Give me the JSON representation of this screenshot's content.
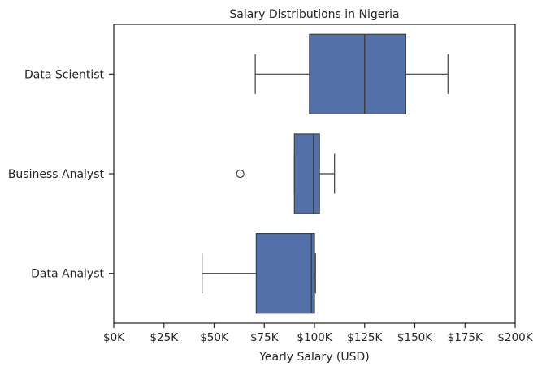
{
  "chart_data": {
    "type": "boxplot",
    "orientation": "horizontal",
    "title": "Salary Distributions in Nigeria",
    "xlabel": "Yearly Salary (USD)",
    "ylabel": "",
    "xlim": [
      0,
      200000
    ],
    "x_ticks": [
      0,
      25000,
      50000,
      75000,
      100000,
      125000,
      150000,
      175000,
      200000
    ],
    "x_tick_labels": [
      "$0K",
      "$25K",
      "$50K",
      "$75K",
      "$100K",
      "$125K",
      "$150K",
      "$175K",
      "$200K"
    ],
    "categories": [
      "Data Scientist",
      "Business Analyst",
      "Data Analyst"
    ],
    "boxes": [
      {
        "category": "Data Scientist",
        "whisker_low": 70500,
        "q1": 97500,
        "median": 125000,
        "q3": 145500,
        "whisker_high": 166500,
        "outliers": []
      },
      {
        "category": "Business Analyst",
        "whisker_low": 90000,
        "q1": 90000,
        "median": 99500,
        "q3": 102500,
        "whisker_high": 110000,
        "outliers": [
          63000
        ]
      },
      {
        "category": "Data Analyst",
        "whisker_low": 44000,
        "q1": 71000,
        "median": 98500,
        "q3": 100000,
        "whisker_high": 100500,
        "outliers": []
      }
    ],
    "box_color": "#5470a8",
    "edge_color": "#3f3f3f",
    "grid": false
  }
}
